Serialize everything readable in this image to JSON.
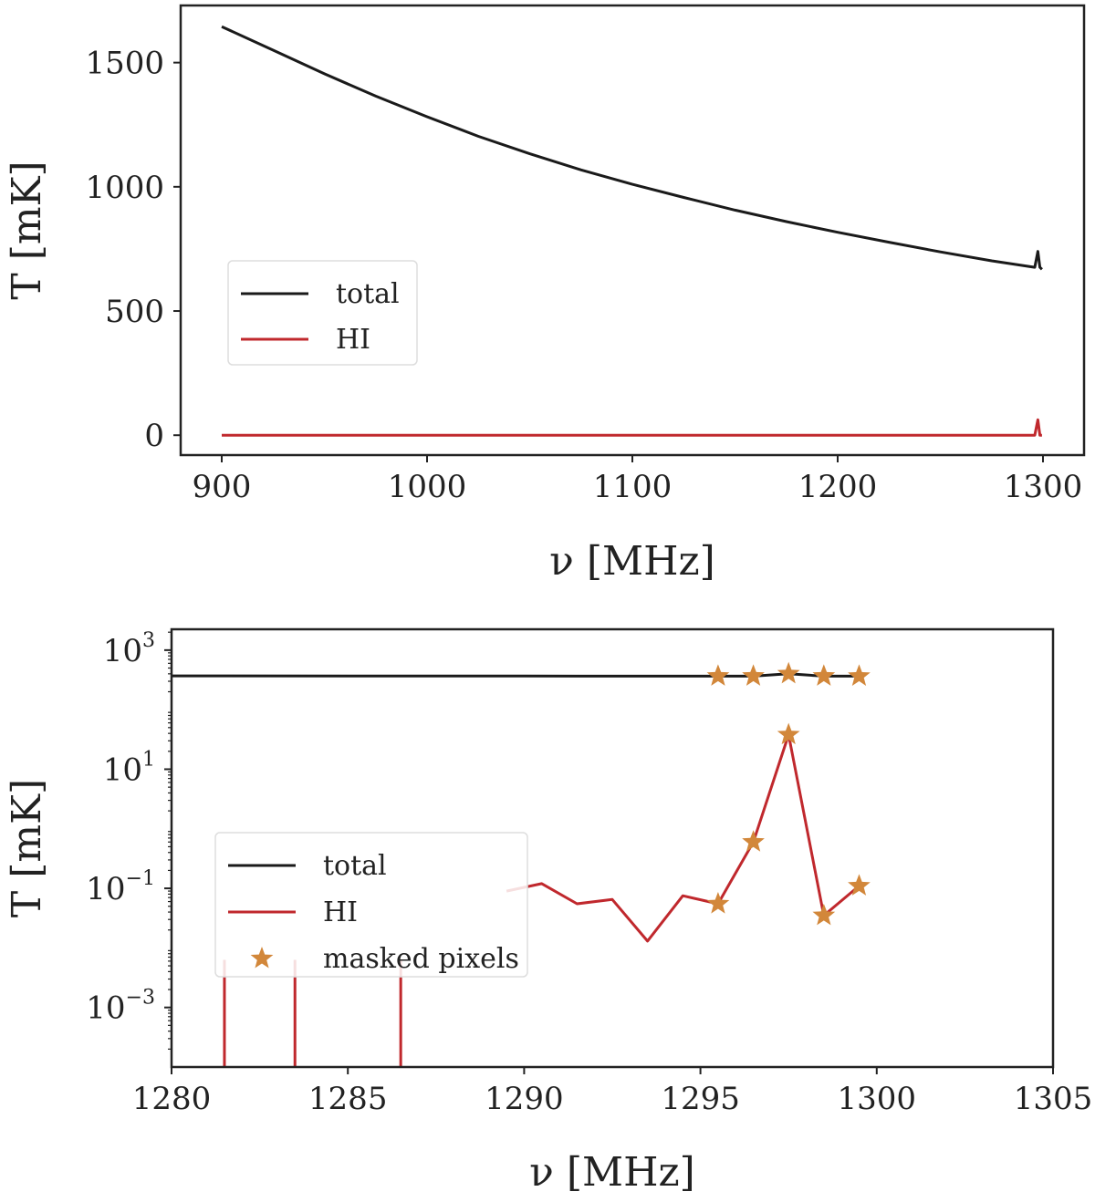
{
  "colors": {
    "total": "#1a1a1a",
    "hi": "#c0282d",
    "masked": "#d2873a",
    "axes": "#222222",
    "legend_border": "#dddddd"
  },
  "chart_data": [
    {
      "type": "line",
      "title": "",
      "xlabel": "ν [MHz]",
      "ylabel": "T [mK]",
      "xlim": [
        880,
        1320
      ],
      "ylim": [
        -80,
        1730
      ],
      "xticks": [
        900,
        1000,
        1100,
        1200,
        1300
      ],
      "xtick_labels": [
        "900",
        "1000",
        "1100",
        "1200",
        "1300"
      ],
      "yticks": [
        0,
        500,
        1000,
        1500
      ],
      "ytick_labels": [
        "0",
        "500",
        "1000",
        "1500"
      ],
      "legend": {
        "position": "center-left",
        "entries": [
          {
            "label": "total",
            "series": "total"
          },
          {
            "label": "HI",
            "series": "HI"
          }
        ]
      },
      "series": [
        {
          "name": "total",
          "color_key": "total",
          "x": [
            900,
            925,
            950,
            975,
            1000,
            1025,
            1050,
            1075,
            1100,
            1125,
            1150,
            1175,
            1200,
            1225,
            1250,
            1275,
            1296,
            1297.5,
            1298.5,
            1299.5
          ],
          "y": [
            1645,
            1550,
            1455,
            1365,
            1282,
            1203,
            1133,
            1068,
            1010,
            957,
            906,
            860,
            817,
            777,
            738,
            702,
            676,
            740,
            676,
            668
          ]
        },
        {
          "name": "HI",
          "color_key": "hi",
          "x": [
            900,
            1000,
            1100,
            1200,
            1296,
            1297.5,
            1298.5,
            1299.5
          ],
          "y": [
            0,
            0,
            0,
            0,
            0,
            62,
            0,
            0
          ]
        }
      ]
    },
    {
      "type": "line",
      "title": "",
      "xlabel": "ν [MHz]",
      "ylabel": "T [mK]",
      "yscale": "log",
      "xlim": [
        1280,
        1305
      ],
      "ylim_log10": [
        -4.0,
        3.35
      ],
      "xticks": [
        1280,
        1285,
        1290,
        1295,
        1300,
        1305
      ],
      "xtick_labels": [
        "1280",
        "1285",
        "1290",
        "1295",
        "1300",
        "1305"
      ],
      "yticks_log10": [
        -3,
        -1,
        1,
        3
      ],
      "ytick_labels": [
        {
          "base": "10",
          "exp": "−3"
        },
        {
          "base": "10",
          "exp": "−1"
        },
        {
          "base": "10",
          "exp": "1"
        },
        {
          "base": "10",
          "exp": "3"
        }
      ],
      "legend": {
        "position": "center-left",
        "entries": [
          {
            "label": "total",
            "series": "total"
          },
          {
            "label": "HI",
            "series": "HI"
          },
          {
            "label": "masked pixels",
            "series": "masked pixels"
          }
        ]
      },
      "series": [
        {
          "name": "total",
          "color_key": "total",
          "x": [
            1280,
            1285,
            1290,
            1295.5,
            1296.5,
            1297.5,
            1298.5,
            1299.5
          ],
          "y": [
            370,
            368,
            367,
            366,
            366,
            400,
            366,
            365
          ]
        },
        {
          "name": "HI",
          "color_key": "hi",
          "x": [
            1289.5,
            1290.5,
            1291.5,
            1292.5,
            1293.5,
            1294.5,
            1295.5,
            1296.5,
            1297.5,
            1298.5,
            1299.5
          ],
          "y": [
            0.09,
            0.12,
            0.055,
            0.065,
            0.013,
            0.075,
            0.055,
            0.6,
            38,
            0.035,
            0.11
          ]
        },
        {
          "name": "HI drop-outs",
          "color_key": "hi",
          "x": [
            1281.5,
            1283.5,
            1286.5
          ],
          "y_log10_range": [
            -4.0,
            -2.2
          ]
        },
        {
          "name": "masked pixels",
          "color_key": "masked",
          "marker": "star",
          "x": [
            1295.5,
            1296.5,
            1297.5,
            1298.5,
            1299.5,
            1295.5,
            1296.5,
            1297.5,
            1298.5,
            1299.5
          ],
          "y": [
            366,
            366,
            400,
            366,
            365,
            0.055,
            0.6,
            38,
            0.035,
            0.11
          ]
        }
      ]
    }
  ]
}
